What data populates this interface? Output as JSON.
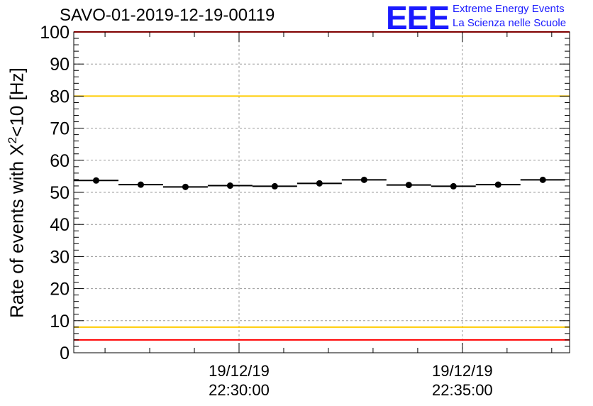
{
  "title": "SAVO-01-2019-12-19-00119",
  "logo": {
    "mark": "EEE",
    "line1": "Extreme Energy Events",
    "line2": "La Scienza nelle Scuole"
  },
  "chart_data": {
    "type": "scatter",
    "ylabel_main": "Rate of events with X",
    "ylabel_sup": "2",
    "ylabel_tail": "<10 [Hz]",
    "ylim": [
      0,
      100
    ],
    "yticks": [
      0,
      10,
      20,
      30,
      40,
      50,
      60,
      70,
      80,
      90,
      100
    ],
    "xlim": [
      "22:26:18",
      "22:37:24"
    ],
    "xticks": [
      {
        "t": "22:30:00",
        "date": "19/12/19",
        "time": "22:30:00"
      },
      {
        "t": "22:35:00",
        "date": "19/12/19",
        "time": "22:35:00"
      }
    ],
    "grid": true,
    "points": [
      {
        "x": "22:26:48",
        "y": 53.7
      },
      {
        "x": "22:27:48",
        "y": 52.4
      },
      {
        "x": "22:28:48",
        "y": 51.7
      },
      {
        "x": "22:29:48",
        "y": 52.1
      },
      {
        "x": "22:30:48",
        "y": 51.9
      },
      {
        "x": "22:31:48",
        "y": 52.8
      },
      {
        "x": "22:32:48",
        "y": 53.9
      },
      {
        "x": "22:33:48",
        "y": 52.3
      },
      {
        "x": "22:34:48",
        "y": 51.9
      },
      {
        "x": "22:35:48",
        "y": 52.4
      },
      {
        "x": "22:36:48",
        "y": 53.9
      }
    ],
    "bin_width_seconds": 60,
    "reference_lines": [
      {
        "y": 100,
        "color": "#ff0000"
      },
      {
        "y": 80,
        "color": "#ffcc00"
      },
      {
        "y": 8,
        "color": "#ffcc00"
      },
      {
        "y": 4,
        "color": "#ff0000"
      }
    ]
  }
}
